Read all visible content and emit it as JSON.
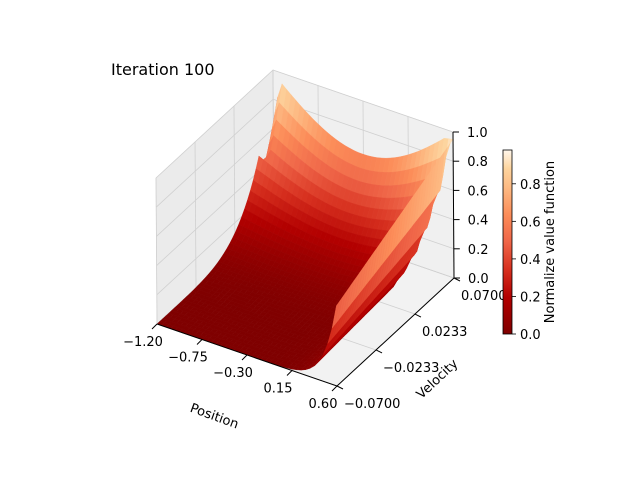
{
  "chart_data": {
    "type": "surface",
    "title": "Iteration 100",
    "xlabel": "Position",
    "ylabel": "Velocity",
    "zlabel": "",
    "x_ticks": [
      "−1.20",
      "−0.75",
      "−0.30",
      "0.15",
      "0.60"
    ],
    "x_tick_values": [
      -1.2,
      -0.75,
      -0.3,
      0.15,
      0.6
    ],
    "y_ticks": [
      "−0.0700",
      "−0.0233",
      "0.0233",
      "0.0700"
    ],
    "y_tick_values": [
      -0.07,
      -0.0233,
      0.0233,
      0.07
    ],
    "z_ticks": [
      "0.0",
      "0.2",
      "0.4",
      "0.6",
      "0.8",
      "1.0"
    ],
    "z_tick_values": [
      0,
      0.2,
      0.4,
      0.6,
      0.8,
      1.0
    ],
    "xlim": [
      -1.2,
      0.6
    ],
    "ylim": [
      -0.07,
      0.07
    ],
    "zlim": [
      0,
      1
    ],
    "colormap": "OrRd_r",
    "colorbar": {
      "label": "Normalize value function",
      "ticks": [
        "0.0",
        "0.2",
        "0.4",
        "0.6",
        "0.8"
      ],
      "tick_values": [
        0,
        0.2,
        0.4,
        0.6,
        0.8
      ],
      "range": [
        0,
        0.98
      ]
    },
    "surface_profile": {
      "description_values": "normalized value vs position (x) and velocity (y); near 0 across most of the domain, rising steeply to ~1 along the high-velocity edge and at the right (goal) edge",
      "samples": [
        {
          "x": -1.2,
          "y": -0.07,
          "z": 0.0
        },
        {
          "x": 0.6,
          "y": -0.07,
          "z": 0.02
        },
        {
          "x": -1.2,
          "y": 0.07,
          "z": 0.0
        },
        {
          "x": -1.1,
          "y": 0.07,
          "z": 0.98
        },
        {
          "x": -0.6,
          "y": 0.07,
          "z": 0.82
        },
        {
          "x": 0.0,
          "y": 0.07,
          "z": 0.7
        },
        {
          "x": 0.6,
          "y": 0.07,
          "z": 0.92
        },
        {
          "x": 0.6,
          "y": 0.0,
          "z": 0.85
        }
      ]
    },
    "grid": true
  }
}
